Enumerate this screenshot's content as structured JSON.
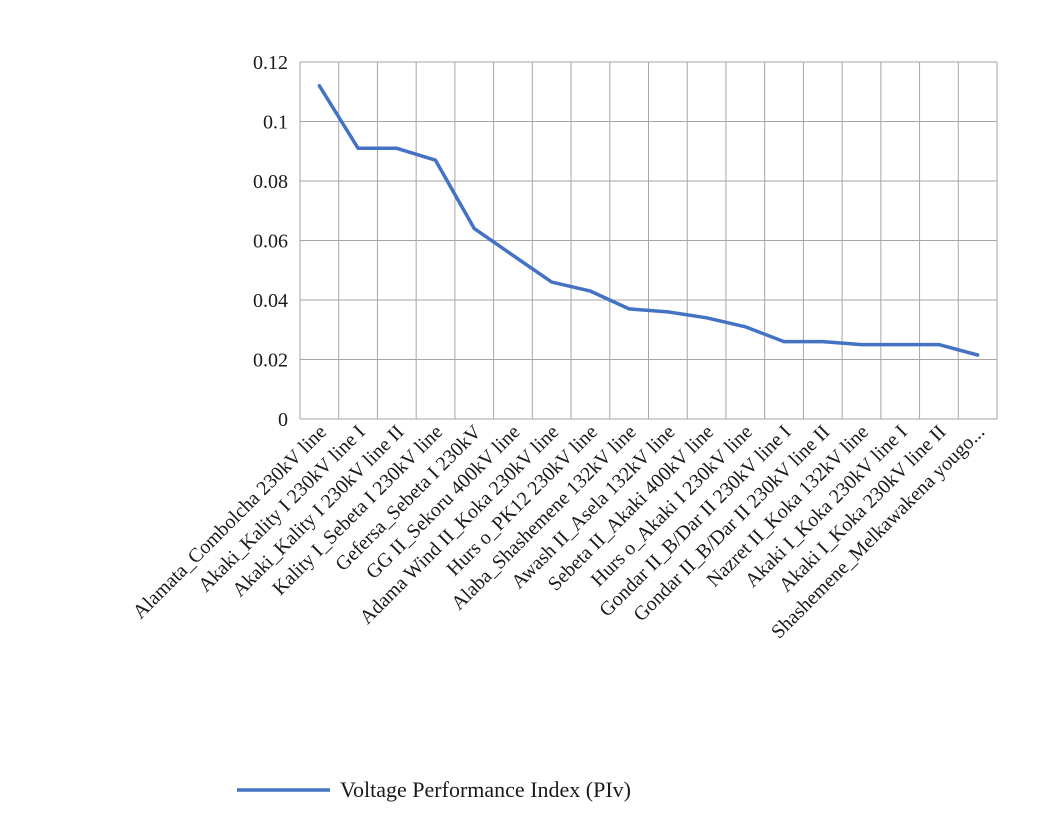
{
  "chart_data": {
    "type": "line",
    "title": "",
    "xlabel": "",
    "ylabel": "",
    "ylim": [
      0,
      0.12
    ],
    "yticks": [
      "0",
      "0.02",
      "0.04",
      "0.06",
      "0.08",
      "0.1",
      "0.12"
    ],
    "grid": true,
    "legend_position": "bottom",
    "categories": [
      "Alamata_Combolcha 230kV line",
      "Akaki_Kality I 230kV line I",
      "Akaki_Kality I 230kV line II",
      "Kality I_Sebeta I 230kV line",
      "Gefersa_Sebeta I 230kV",
      "GG II_Sekoru 400kV line",
      "Adama Wind II_Koka 230kV line",
      "Hurs o_PK12 230kV line",
      "Alaba_Shashemene 132kV line",
      "Awash II_Asela 132kV line",
      "Sebeta II_Akaki 400kV line",
      "Hurs o_Akaki I 230kV line",
      "Gondar II_B/Dar II 230kV line I",
      "Gondar II_B/Dar II 230kV line II",
      "Nazret II_Koka 132kV line",
      "Akaki I_Koka 230kV line I",
      "Akaki I_Koka 230kV line II",
      "Shashemene_Melkawakena yougo..."
    ],
    "series": [
      {
        "name": "Voltage Performance Index (PIv)",
        "color": "#4472c4",
        "values": [
          0.112,
          0.091,
          0.091,
          0.087,
          0.064,
          0.055,
          0.046,
          0.043,
          0.037,
          0.036,
          0.034,
          0.031,
          0.026,
          0.026,
          0.025,
          0.025,
          0.025,
          0.0215
        ]
      }
    ]
  }
}
